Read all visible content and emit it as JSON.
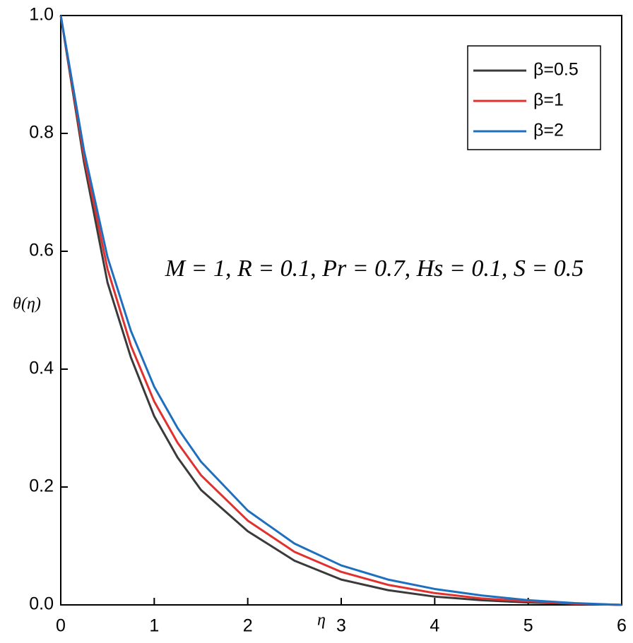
{
  "chart_data": {
    "type": "line",
    "xlabel": "η",
    "ylabel": "θ(η)",
    "annotation": "M = 1, R = 0.1, Pr = 0.7, Hs = 0.1, S = 0.5",
    "x": [
      0,
      0.25,
      0.5,
      0.75,
      1,
      1.25,
      1.5,
      2,
      2.5,
      3,
      3.5,
      4,
      4.5,
      5,
      5.5,
      6
    ],
    "series": [
      {
        "name": "β=0.5",
        "color": "#3a3a3a",
        "values": [
          1,
          0.75,
          0.547,
          0.42,
          0.32,
          0.25,
          0.195,
          0.125,
          0.075,
          0.043,
          0.025,
          0.014,
          0.008,
          0.004,
          0.002,
          0
        ]
      },
      {
        "name": "β=1",
        "color": "#e0312f",
        "values": [
          1,
          0.76,
          0.57,
          0.44,
          0.345,
          0.275,
          0.22,
          0.143,
          0.09,
          0.056,
          0.034,
          0.02,
          0.011,
          0.006,
          0.002,
          0
        ]
      },
      {
        "name": "β=2",
        "color": "#1f6fbf",
        "values": [
          1,
          0.77,
          0.59,
          0.465,
          0.37,
          0.3,
          0.243,
          0.16,
          0.104,
          0.067,
          0.043,
          0.027,
          0.016,
          0.008,
          0.003,
          0
        ]
      }
    ],
    "xlim": [
      0,
      6
    ],
    "xticks": [
      0,
      1,
      2,
      3,
      4,
      5,
      6
    ],
    "ylim": [
      0,
      1
    ],
    "yticks": [
      {
        "value": 0,
        "label": "0.0"
      },
      0.2,
      0.4,
      0.6,
      0.8,
      {
        "value": 1,
        "label": "1.0"
      }
    ],
    "legend": "upper right"
  }
}
